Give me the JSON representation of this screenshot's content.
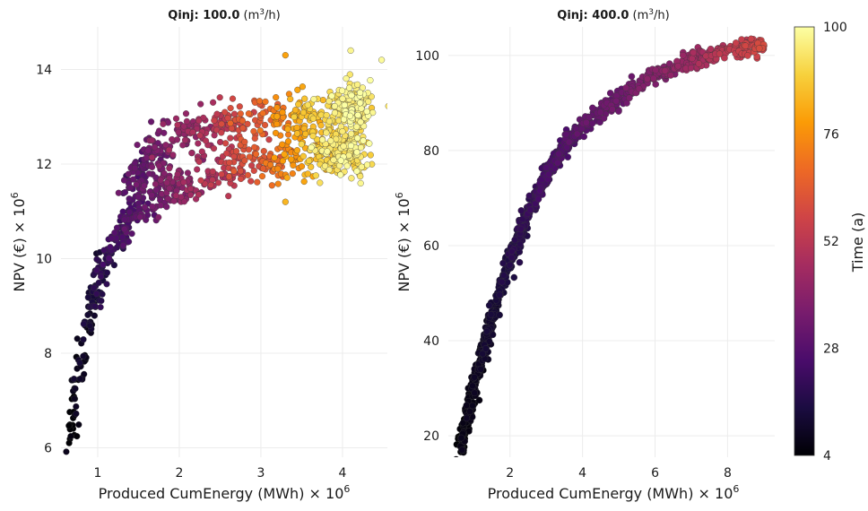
{
  "chart_data": [
    {
      "type": "scatter",
      "title": "Qinj: 100.0 (m³/h)",
      "title_parts": {
        "prefix": "Qinj: 100.0",
        "unit_open": " (m",
        "unit_sup": "3",
        "unit_close": "/h)"
      },
      "xlabel": "Produced CumEnergy (MWh) × 10",
      "xlabel_sup": "6",
      "ylabel": "NPV (€) × 10",
      "ylabel_sup": "6",
      "xlim": [
        0.55,
        4.55
      ],
      "ylim": [
        5.8,
        14.9
      ],
      "xticks": [
        1,
        2,
        3,
        4
      ],
      "yticks": [
        6,
        8,
        10,
        12,
        14
      ],
      "grid": true,
      "color_by": "Time (a)",
      "trend": {
        "main_branch": [
          [
            0.65,
            6.1,
            4
          ],
          [
            0.8,
            7.9,
            9
          ],
          [
            0.95,
            9.2,
            14
          ],
          [
            1.1,
            10.0,
            19
          ],
          [
            1.3,
            10.6,
            24
          ],
          [
            1.5,
            11.1,
            29
          ],
          [
            1.8,
            11.45,
            36
          ],
          [
            2.1,
            11.6,
            42
          ],
          [
            2.5,
            11.85,
            52
          ],
          [
            3.0,
            12.05,
            64
          ],
          [
            3.5,
            12.2,
            80
          ],
          [
            4.0,
            12.35,
            92
          ],
          [
            4.2,
            12.45,
            97
          ]
        ],
        "upper_branch": [
          [
            1.4,
            11.5,
            28
          ],
          [
            1.6,
            12.3,
            32
          ],
          [
            2.0,
            12.6,
            40
          ],
          [
            2.5,
            12.8,
            52
          ],
          [
            3.0,
            13.0,
            66
          ],
          [
            3.5,
            13.1,
            84
          ],
          [
            4.0,
            13.2,
            94
          ],
          [
            4.3,
            13.3,
            98
          ]
        ]
      },
      "highlighted_points": [
        [
          4.1,
          14.4,
          98
        ],
        [
          4.48,
          14.2,
          99
        ],
        [
          3.3,
          14.3,
          80
        ],
        [
          3.3,
          11.2,
          84
        ],
        [
          0.65,
          6.1,
          4
        ]
      ]
    },
    {
      "type": "scatter",
      "title": "Qinj: 400.0 (m³/h)",
      "title_parts": {
        "prefix": "Qinj: 400.0",
        "unit_open": " (m",
        "unit_sup": "3",
        "unit_close": "/h)"
      },
      "xlabel": "Produced CumEnergy (MWh) × 10",
      "xlabel_sup": "6",
      "ylabel": "NPV (€) × 10",
      "ylabel_sup": "6",
      "xlim": [
        0.3,
        9.3
      ],
      "ylim": [
        15.5,
        106
      ],
      "xticks": [
        2,
        4,
        6,
        8
      ],
      "yticks": [
        20,
        40,
        60,
        80,
        100
      ],
      "grid": true,
      "color_by": "Time (a)",
      "trend": {
        "curve": [
          [
            0.65,
            17.5,
            4
          ],
          [
            1.0,
            30,
            7
          ],
          [
            1.5,
            45,
            11
          ],
          [
            2.0,
            57,
            15
          ],
          [
            2.5,
            67,
            19
          ],
          [
            3.0,
            75,
            23
          ],
          [
            3.5,
            81,
            26
          ],
          [
            4.0,
            85,
            29
          ],
          [
            5.0,
            91,
            33
          ],
          [
            6.0,
            96,
            38
          ],
          [
            7.0,
            99,
            44
          ],
          [
            8.0,
            101,
            52
          ],
          [
            9.0,
            102,
            57
          ]
        ]
      },
      "highlighted_points": [
        [
          0.65,
          17.5,
          4
        ],
        [
          8.6,
          102,
          56
        ],
        [
          9.0,
          102,
          58
        ],
        [
          7.9,
          100,
          52
        ]
      ]
    }
  ],
  "colorbar": {
    "label": "Time (a)",
    "ticks": [
      4,
      28,
      52,
      76,
      100
    ],
    "range": [
      4,
      100
    ],
    "colormap": "inferno",
    "stops": [
      "#000004",
      "#1b0c41",
      "#4a0c6b",
      "#781c6d",
      "#a52c60",
      "#cf4446",
      "#ed6925",
      "#fb9b06",
      "#f7d13d",
      "#fcffa4"
    ]
  }
}
